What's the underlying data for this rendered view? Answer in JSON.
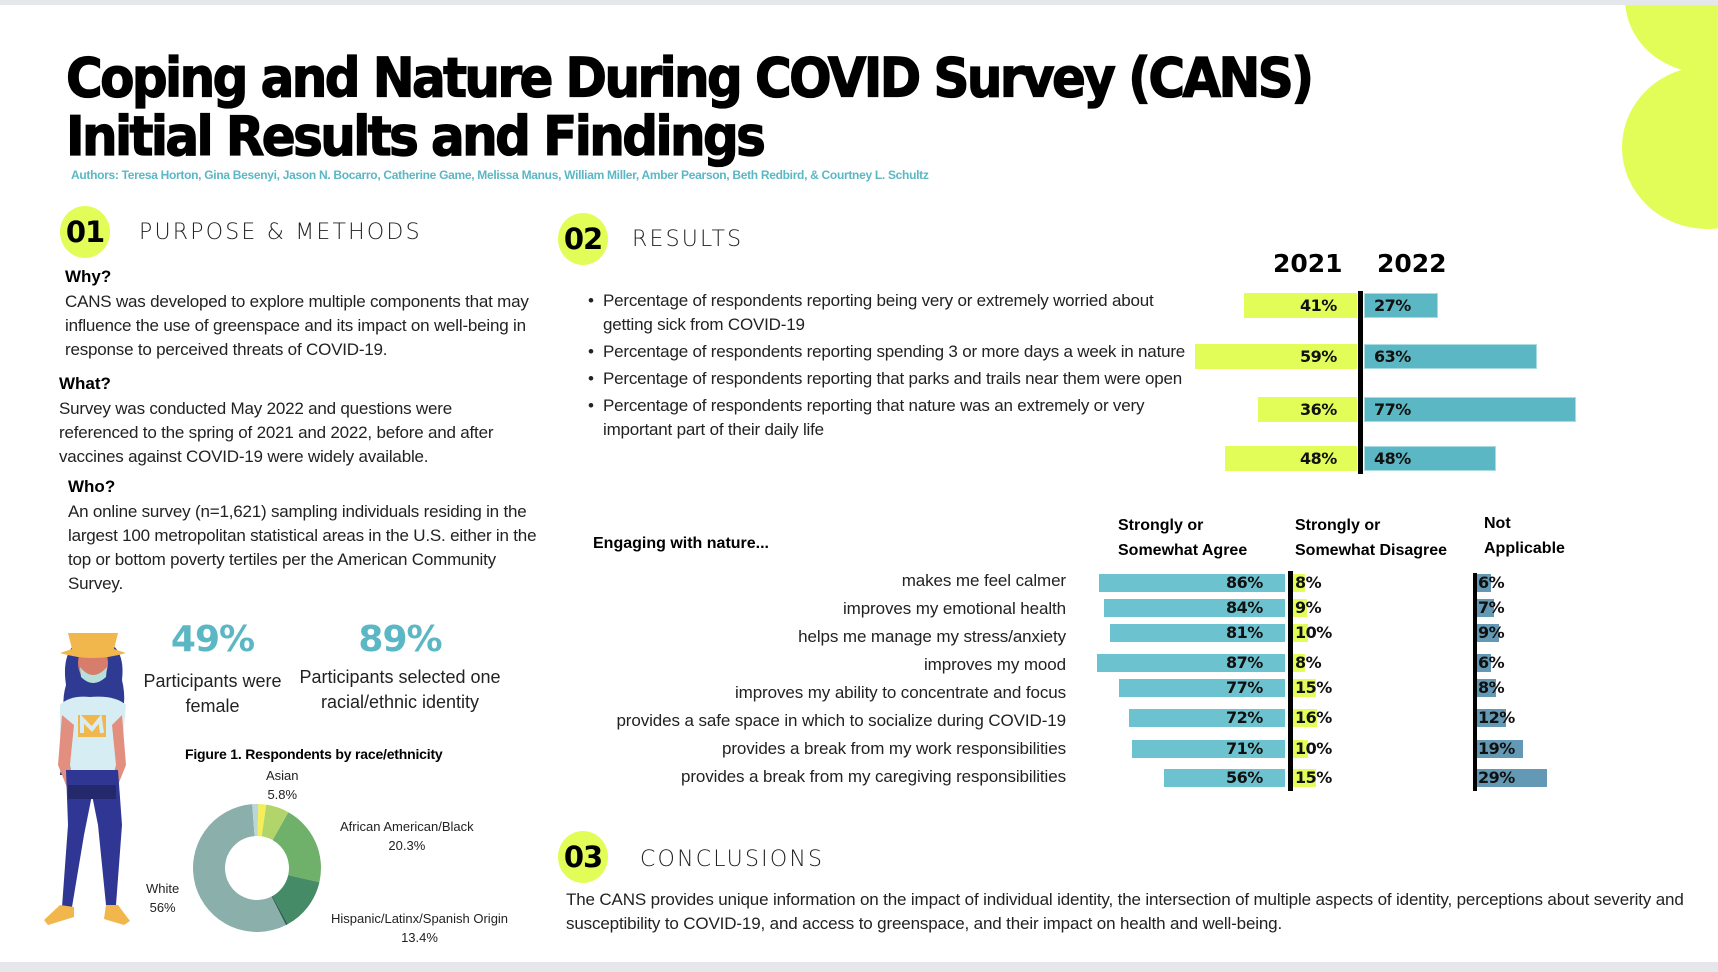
{
  "title": {
    "line1": "Coping and Nature During COVID Survey (CANS)",
    "line2": "Initial Results and Findings"
  },
  "authors": "Authors: Teresa Horton, Gina Besenyi, Jason N. Bocarro, Catherine Game, Melissa Manus, William Miller, Amber Pearson, Beth Redbird, & Courtney L. Schultz",
  "colors": {
    "lime": "#e2fd58",
    "teal": "#5bb7c4",
    "steel_blue": "#6499b5"
  },
  "purpose": {
    "number": "01",
    "heading": "PURPOSE & METHODS",
    "why_label": "Why?",
    "why_text": "CANS was developed to explore multiple components that may influence the use of greenspace and its impact on well-being in response to perceived threats of COVID-19.",
    "what_label": "What?",
    "what_text": "Survey was conducted May 2022 and questions were referenced to the spring of 2021 and 2022, before and after vaccines against COVID-19 were widely available.",
    "who_label": "Who?",
    "who_text": "An online survey (n=1,621)  sampling individuals residing in the largest 100 metropolitan statistical areas in the U.S. either in the top or bottom poverty tertiles per the American Community Survey."
  },
  "stats": [
    {
      "value": "49%",
      "caption": "Participants were female"
    },
    {
      "value": "89%",
      "caption": "Participants selected one racial/ethnic identity"
    }
  ],
  "results": {
    "number": "02",
    "heading": "RESULTS",
    "bullets": [
      "Percentage of respondents reporting being very or extremely worried about getting sick from COVID-19",
      "Percentage of respondents reporting spending 3 or more days a week in nature",
      "Percentage of respondents reporting that parks and trails near them were open",
      "Percentage of respondents reporting that nature was an extremely or very important part of their daily life"
    ]
  },
  "engaging": {
    "title": "Engaging with nature...",
    "col_agree": [
      "Strongly or",
      "Somewhat Agree"
    ],
    "col_disagree": [
      "Strongly or",
      "Somewhat Disagree"
    ],
    "col_na": [
      "Not",
      "Applicable"
    ]
  },
  "conclusions": {
    "number": "03",
    "heading": "CONCLUSIONS",
    "text": "The CANS provides unique information on the impact of individual identity, the intersection of multiple aspects of identity, perceptions about severity and susceptibility to COVID-19, and access to greenspace, and their impact on health and well-being."
  },
  "chart_data": [
    {
      "type": "bar",
      "orientation": "diverging-horizontal",
      "title": "",
      "categories": [
        "Very or extremely worried about getting sick from COVID-19",
        "Spending 3 or more days a week in nature",
        "Parks and trails near them were open",
        "Nature was an extremely or very important part of daily life"
      ],
      "series": [
        {
          "name": "2021",
          "values": [
            41,
            59,
            36,
            48
          ],
          "labels": [
            "41%",
            "59%",
            "36%",
            "48%"
          ],
          "color": "#e2fd58"
        },
        {
          "name": "2022",
          "values": [
            27,
            63,
            77,
            48
          ],
          "labels": [
            "27%",
            "63%",
            "77%",
            "48%"
          ],
          "color": "#5bb7c4"
        }
      ],
      "unit": "%"
    },
    {
      "type": "bar",
      "orientation": "diverging-horizontal",
      "title": "Engaging with nature...",
      "categories": [
        "makes me feel calmer",
        "improves my emotional health",
        "helps me manage my stress/anxiety",
        "improves my mood",
        "improves my ability to concentrate and focus",
        "provides a safe space in which to socialize during COVID-19",
        "provides a break from my work responsibilities",
        "provides a break from my caregiving responsibilities"
      ],
      "series": [
        {
          "name": "Strongly or Somewhat Agree",
          "values": [
            86,
            84,
            81,
            87,
            77,
            72,
            71,
            56
          ],
          "labels": [
            "86%",
            "84%",
            "81%",
            "87%",
            "77%",
            "72%",
            "71%",
            "56%"
          ],
          "color": "#6cc3cf"
        },
        {
          "name": "Strongly or Somewhat Disagree",
          "values": [
            8,
            9,
            10,
            8,
            15,
            16,
            10,
            15
          ],
          "labels": [
            "8%",
            "9%",
            "10%",
            "8%",
            "15%",
            "16%",
            "10%",
            "15%"
          ],
          "color": "#e2fd58"
        },
        {
          "name": "Not Applicable",
          "values": [
            6,
            7,
            9,
            6,
            8,
            12,
            19,
            29
          ],
          "labels": [
            "6%",
            "7%",
            "9%",
            "6%",
            "8%",
            "12%",
            "19%",
            "29%"
          ],
          "color": "#6499b5"
        }
      ],
      "unit": "%"
    },
    {
      "type": "pie",
      "donut": true,
      "title": "Figure 1. Respondents by race/ethnicity",
      "slices": [
        {
          "name": "Other (unlabeled)",
          "value": 2.0,
          "label": "",
          "color": "#f3ee5a"
        },
        {
          "name": "Asian",
          "value": 5.8,
          "label": "5.8%",
          "color": "#b1d56b"
        },
        {
          "name": "African American/Black",
          "value": 20.3,
          "label": "20.3%",
          "color": "#6fb06a"
        },
        {
          "name": "Hispanic/Latinx/Spanish Origin",
          "value": 13.4,
          "label": "13.4%",
          "color": "#468b67"
        },
        {
          "name": "Other (unlabeled)",
          "value": 0.5,
          "label": "",
          "color": "#2f5c4f"
        },
        {
          "name": "White",
          "value": 56,
          "label": "56%",
          "color": "#8bb0ab"
        },
        {
          "name": "Other (unlabeled)",
          "value": 1.5,
          "label": "",
          "color": "#bcd6d8"
        }
      ]
    }
  ]
}
